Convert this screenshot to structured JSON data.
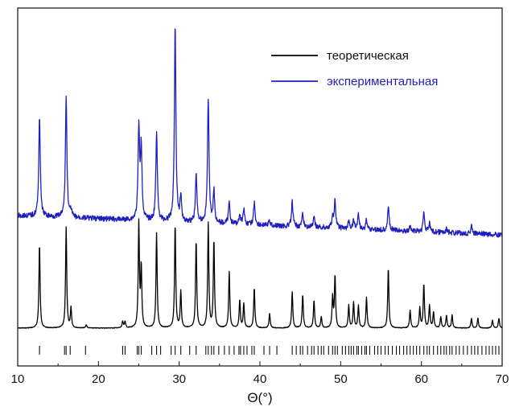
{
  "chart_data": {
    "type": "line",
    "title": "",
    "xlabel": "Θ(°)",
    "ylabel": "",
    "xlim": [
      10,
      70
    ],
    "xticks": [
      "10",
      "20",
      "30",
      "40",
      "50",
      "60",
      "70"
    ],
    "y_ticks_shown": false,
    "legend_position": "top-right",
    "series": [
      {
        "name": "теоретическая",
        "color": "#000000",
        "baseline": 0,
        "peaks": [
          [
            12.7,
            105
          ],
          [
            16.0,
            125
          ],
          [
            16.6,
            25
          ],
          [
            18.5,
            4
          ],
          [
            23.0,
            8
          ],
          [
            23.3,
            8
          ],
          [
            25.0,
            130
          ],
          [
            25.3,
            75
          ],
          [
            27.2,
            118
          ],
          [
            29.5,
            130
          ],
          [
            30.2,
            45
          ],
          [
            32.1,
            110
          ],
          [
            33.6,
            130
          ],
          [
            34.3,
            110
          ],
          [
            36.2,
            70
          ],
          [
            37.5,
            35
          ],
          [
            38.0,
            30
          ],
          [
            39.3,
            50
          ],
          [
            41.2,
            18
          ],
          [
            44.0,
            45
          ],
          [
            45.3,
            42
          ],
          [
            46.7,
            35
          ],
          [
            47.6,
            14
          ],
          [
            49.0,
            38
          ],
          [
            49.3,
            65
          ],
          [
            51.0,
            28
          ],
          [
            51.6,
            32
          ],
          [
            52.2,
            28
          ],
          [
            53.2,
            38
          ],
          [
            55.9,
            75
          ],
          [
            58.6,
            22
          ],
          [
            59.8,
            25
          ],
          [
            60.3,
            55
          ],
          [
            61.0,
            28
          ],
          [
            61.5,
            20
          ],
          [
            62.4,
            14
          ],
          [
            63.1,
            16
          ],
          [
            63.8,
            16
          ],
          [
            66.2,
            12
          ],
          [
            67.0,
            12
          ],
          [
            68.8,
            10
          ],
          [
            69.6,
            12
          ]
        ]
      },
      {
        "name": "экспериментальная",
        "color": "#1f1fbe",
        "baseline": 0,
        "peaks": [
          [
            12.7,
            125
          ],
          [
            16.0,
            150
          ],
          [
            16.6,
            8
          ],
          [
            25.0,
            115
          ],
          [
            25.3,
            90
          ],
          [
            27.2,
            110
          ],
          [
            29.5,
            245
          ],
          [
            30.2,
            30
          ],
          [
            32.1,
            60
          ],
          [
            33.6,
            155
          ],
          [
            34.3,
            40
          ],
          [
            36.2,
            27
          ],
          [
            37.5,
            12
          ],
          [
            38.0,
            20
          ],
          [
            39.3,
            28
          ],
          [
            41.2,
            6
          ],
          [
            44.0,
            30
          ],
          [
            45.3,
            15
          ],
          [
            46.7,
            11
          ],
          [
            49.0,
            14
          ],
          [
            49.3,
            33
          ],
          [
            51.0,
            8
          ],
          [
            51.6,
            11
          ],
          [
            52.2,
            18
          ],
          [
            53.2,
            12
          ],
          [
            55.9,
            30
          ],
          [
            58.6,
            5
          ],
          [
            60.3,
            24
          ],
          [
            61.0,
            10
          ],
          [
            63.1,
            5
          ],
          [
            66.2,
            10
          ]
        ]
      }
    ],
    "reference_ticks": [
      12.7,
      15.8,
      16.0,
      16.5,
      18.4,
      23.0,
      23.3,
      24.8,
      25.0,
      25.3,
      26.6,
      27.2,
      27.7,
      29.0,
      29.5,
      30.2,
      31.3,
      32.1,
      33.3,
      33.6,
      34.0,
      34.3,
      34.9,
      35.6,
      36.2,
      36.8,
      37.4,
      37.6,
      38.0,
      38.4,
      39.0,
      39.3,
      40.5,
      41.2,
      42.1,
      44.0,
      44.5,
      45.0,
      45.3,
      45.9,
      46.4,
      46.7,
      47.2,
      47.6,
      47.9,
      48.5,
      49.0,
      49.3,
      49.6,
      50.2,
      50.6,
      51.0,
      51.3,
      51.6,
      52.0,
      52.2,
      52.6,
      53.0,
      53.2,
      53.6,
      54.2,
      54.6,
      55.0,
      55.5,
      55.9,
      56.4,
      56.9,
      57.3,
      57.8,
      58.2,
      58.6,
      59.0,
      59.4,
      59.8,
      60.3,
      60.7,
      61.0,
      61.5,
      62.0,
      62.4,
      62.8,
      63.1,
      63.5,
      63.8,
      64.3,
      64.7,
      65.2,
      65.7,
      66.2,
      66.6,
      67.0,
      67.5,
      68.0,
      68.4,
      68.8,
      69.2,
      69.6
    ]
  }
}
